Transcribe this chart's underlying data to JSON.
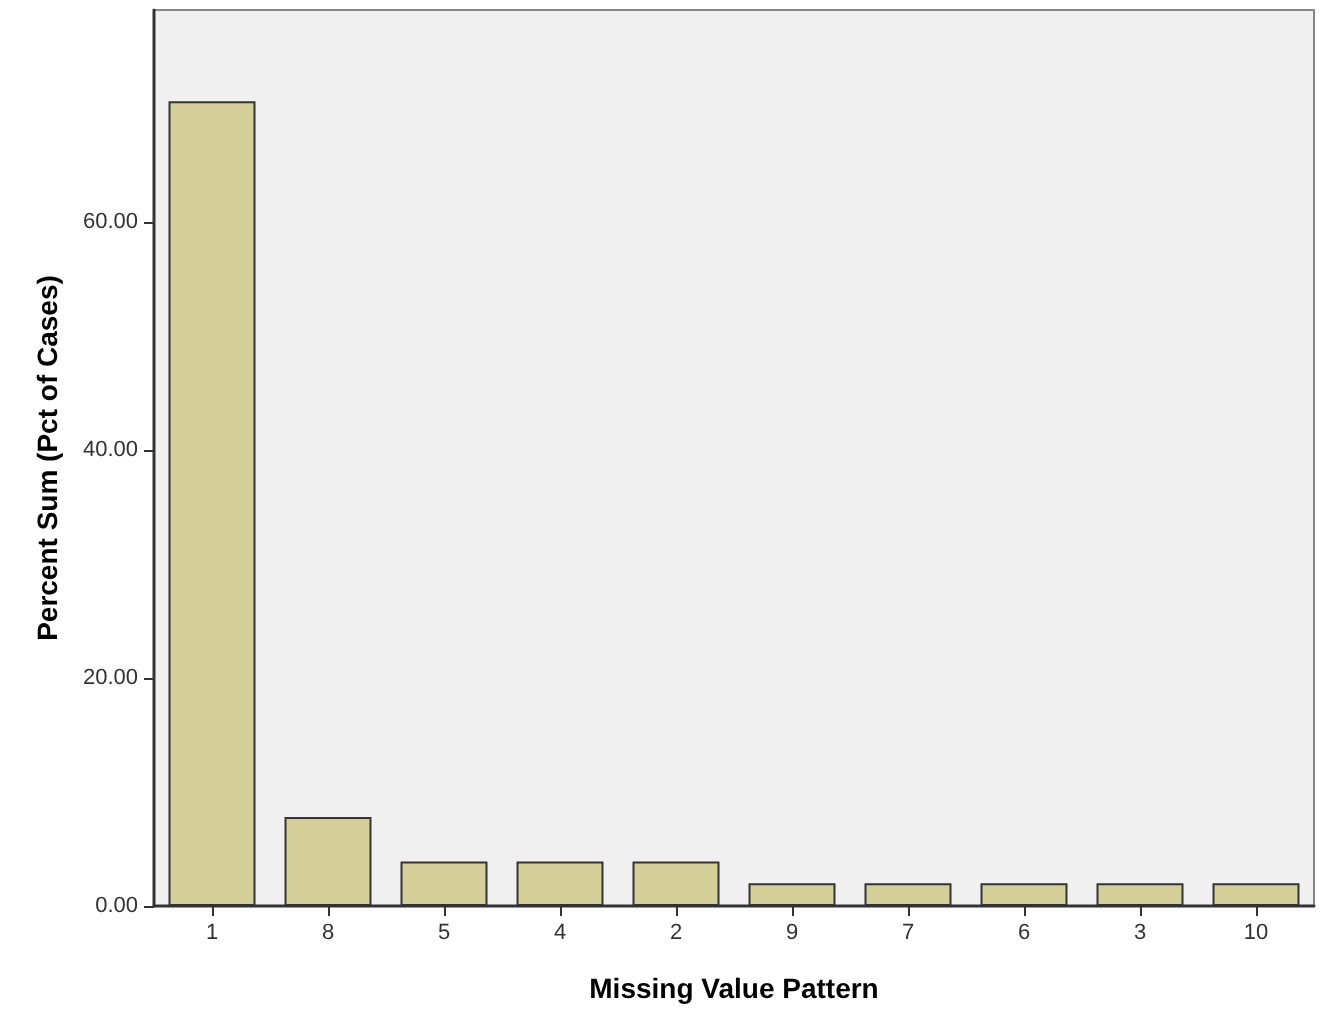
{
  "chart_data": {
    "type": "bar",
    "xlabel": "Missing Value Pattern",
    "ylabel": "Percent Sum (Pct of Cases)",
    "categories": [
      "1",
      "8",
      "5",
      "4",
      "2",
      "9",
      "7",
      "6",
      "3",
      "10"
    ],
    "values": [
      70.6,
      7.8,
      3.9,
      3.9,
      3.9,
      2.0,
      2.0,
      2.0,
      2.0,
      2.0
    ],
    "color": "#d3ce97",
    "ylim": [
      0,
      78.6
    ],
    "yticks": [
      {
        "value": 0,
        "label": "0.00"
      },
      {
        "value": 20,
        "label": "20.00"
      },
      {
        "value": 40,
        "label": "40.00"
      },
      {
        "value": 60,
        "label": "60.00"
      }
    ],
    "grid": false
  }
}
